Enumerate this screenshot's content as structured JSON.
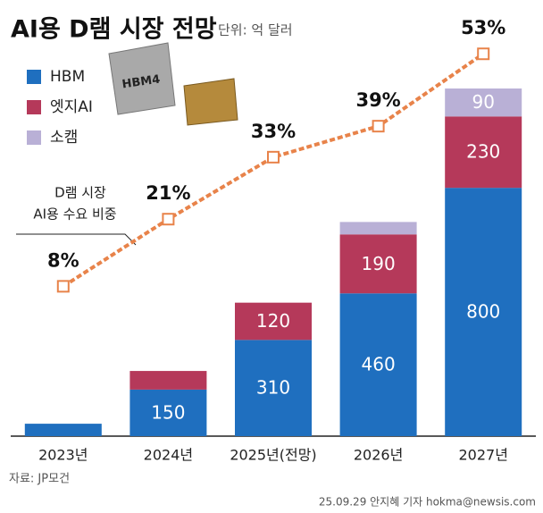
{
  "chart_data": {
    "type": "stacked-bar-line",
    "title": "AI용 D램 시장 전망",
    "unit": "단위: 억 달러",
    "chip_label": "HBM4",
    "categories": [
      "2023년",
      "2024년",
      "2025년(전망)",
      "2026년",
      "2027년"
    ],
    "series": [
      {
        "name": "HBM",
        "color": "#1f6fbf",
        "values": [
          40,
          150,
          310,
          460,
          800
        ]
      },
      {
        "name": "엣지AI",
        "color": "#b5395a",
        "values": [
          null,
          60,
          120,
          190,
          230
        ]
      },
      {
        "name": "소캠",
        "color": "#b9b0d6",
        "values": [
          null,
          null,
          null,
          40,
          90
        ]
      },
      {
        "name": "AI용 수요 비중",
        "type": "line",
        "axis": "y2",
        "color": "#e8834a",
        "values": [
          8,
          21,
          33,
          39,
          53
        ],
        "value_labels": [
          "8%",
          "21%",
          "33%",
          "39%",
          "53%"
        ]
      }
    ],
    "annotation": [
      "D램 시장",
      "AI용 수요 비중"
    ],
    "ylim": [
      0,
      1290
    ],
    "y2lim": [
      -21,
      56.5
    ],
    "source": "자료: JP모건",
    "credit": "25.09.29 안지혜 기자 hokma@newsis.com"
  }
}
